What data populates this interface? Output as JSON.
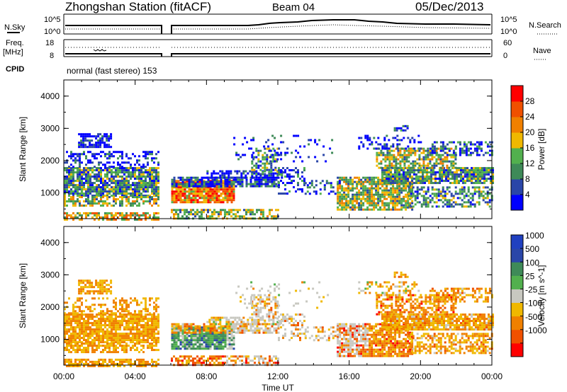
{
  "header": {
    "station": "Zhongshan Station (fitACF)",
    "beam": "Beam 04",
    "date": "05/Dec/2013"
  },
  "summary_labels": {
    "nsky": "N.Sky",
    "nsearch": "N.Search",
    "freq_line1": "Freq.",
    "freq_line2": "[MHz]",
    "nave": "Nave",
    "cpid": "CPID",
    "mode": "normal (fast stereo) 153"
  },
  "summary_ticks": {
    "noise_left": [
      "10^5",
      "10^0"
    ],
    "noise_right": [
      "10^5",
      "10^0"
    ],
    "freq_left": [
      "18",
      "8"
    ],
    "nave_right": [
      "60",
      "0"
    ]
  },
  "colors": {
    "power": [
      "#0000ff",
      "#2a46a8",
      "#3e8a58",
      "#52b04e",
      "#f0b800",
      "#f08000",
      "#f05000",
      "#ff0000"
    ],
    "velocity": [
      "#ff0000",
      "#f05000",
      "#f08000",
      "#f0b800",
      "#c8c8c0",
      "#52b04e",
      "#3e8a58",
      "#2a46a8",
      "#2040c0"
    ]
  },
  "chart_data": [
    {
      "type": "heatmap",
      "name": "power",
      "xlabel": "",
      "ylabel": "Slant Range [km]",
      "y_ticks": [
        "1000",
        "2000",
        "3000",
        "4000"
      ],
      "ylim": [
        200,
        4500
      ],
      "colorbar_label": "Power [dB]",
      "colorbar_ticks": [
        "4",
        "8",
        "12",
        "16",
        "20",
        "24",
        "28"
      ],
      "colorbar_range": [
        0,
        30
      ]
    },
    {
      "type": "heatmap",
      "name": "velocity",
      "xlabel": "Time UT",
      "ylabel": "Slant Range [km]",
      "x_ticks": [
        "00:00",
        "04:00",
        "08:00",
        "12:00",
        "16:00",
        "20:00",
        "00:00"
      ],
      "y_ticks": [
        "1000",
        "2000",
        "3000",
        "4000"
      ],
      "ylim": [
        200,
        4500
      ],
      "colorbar_label": "Velocity [m s^-1]",
      "colorbar_ticks": [
        "1000",
        "500",
        "100",
        "25",
        "-25",
        "-100",
        "-500",
        "-1000"
      ]
    }
  ]
}
